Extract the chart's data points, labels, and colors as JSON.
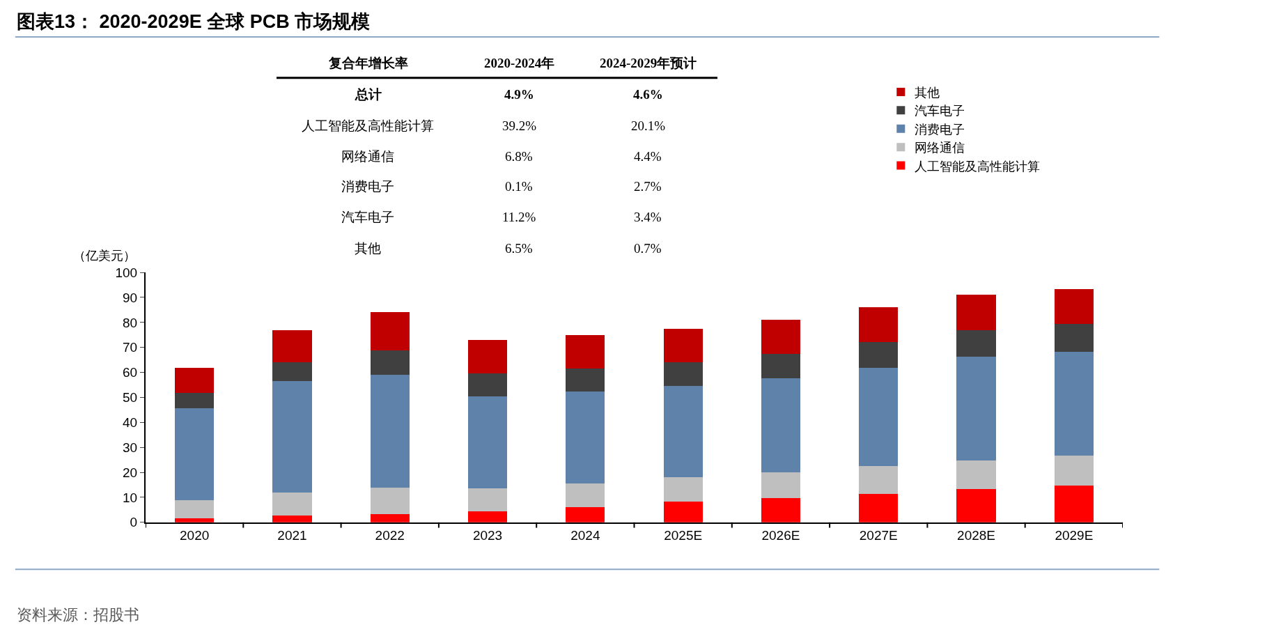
{
  "chart_data": {
    "type": "bar",
    "title": "图表13： 2020-2029E 全球 PCB 市场规模",
    "ylabel": "（亿美元）",
    "categories": [
      "2020",
      "2021",
      "2022",
      "2023",
      "2024",
      "2025E",
      "2026E",
      "2027E",
      "2028E",
      "2029E"
    ],
    "stacked": true,
    "series": [
      {
        "name": "人工智能及高性能计算",
        "color": "#ff0000",
        "values": [
          1.6,
          2.6,
          3.3,
          4.4,
          6.1,
          8.2,
          9.7,
          11.4,
          13.2,
          14.6
        ]
      },
      {
        "name": "网络通信",
        "color": "#bfbfbf",
        "values": [
          7.3,
          9.3,
          10.5,
          9.1,
          9.5,
          9.9,
          10.4,
          11.0,
          11.5,
          12.1
        ]
      },
      {
        "name": "消费电子",
        "color": "#5f82ab",
        "values": [
          36.7,
          44.7,
          45.2,
          37.0,
          36.7,
          36.4,
          37.5,
          39.4,
          41.5,
          41.6
        ]
      },
      {
        "name": "汽车电子",
        "color": "#404040",
        "values": [
          6.1,
          7.6,
          9.9,
          9.0,
          9.3,
          9.5,
          9.7,
          10.3,
          10.7,
          11.2
        ]
      },
      {
        "name": "其他",
        "color": "#c00000",
        "values": [
          10.2,
          12.7,
          15.2,
          13.4,
          13.4,
          13.4,
          13.7,
          13.9,
          14.1,
          13.8
        ]
      }
    ],
    "ylim": [
      0,
      100
    ],
    "yticks": [
      0,
      10,
      20,
      30,
      40,
      50,
      60,
      70,
      80,
      90,
      100
    ],
    "legend": "top right",
    "annotations": [
      "复合年增长率",
      "2020-2024年",
      "2024-2029年预计",
      "总计",
      "4.9%",
      "4.6%",
      "人工智能及高性能计算",
      "39.2%",
      "20.1%",
      "网络通信",
      "6.8%",
      "4.4%",
      "消费电子",
      "0.1%",
      "2.7%",
      "汽车电子",
      "11.2%",
      "3.4%",
      "其他",
      "6.5%",
      "0.7%",
      "资料来源：招股书"
    ]
  }
}
